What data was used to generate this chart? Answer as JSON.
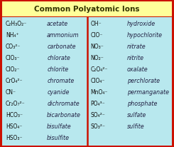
{
  "title": "Common Polyatomic Ions",
  "title_bg": "#FFFF99",
  "table_bg": "#B8E8EE",
  "border_color": "#CC1100",
  "divider_color": "#CC1100",
  "text_color": "#111111",
  "name_color": "#222244",
  "left_rows": [
    {
      "formula": "C₂H₃O₂⁻",
      "name": "acetate"
    },
    {
      "formula": "NH₄⁺",
      "name": "ammonium"
    },
    {
      "formula": "CO₃²⁻",
      "name": "carbonate"
    },
    {
      "formula": "ClO₃⁻",
      "name": "chlorate"
    },
    {
      "formula": "ClO₂⁻",
      "name": "chlorite"
    },
    {
      "formula": "CrO₄²⁻",
      "name": "chromate"
    },
    {
      "formula": "CN⁻",
      "name": "cyanide"
    },
    {
      "formula": "Cr₂O₇²⁻",
      "name": "dichromate"
    },
    {
      "formula": "HCO₃⁻",
      "name": "bicarbonate"
    },
    {
      "formula": "HSO₄⁻",
      "name": "bisulfate"
    },
    {
      "formula": "HSO₃⁻",
      "name": "bisulfite"
    }
  ],
  "right_rows": [
    {
      "formula": "OH⁻",
      "name": "hydroxide"
    },
    {
      "formula": "ClO⁻",
      "name": "hypochlorite"
    },
    {
      "formula": "NO₃⁻",
      "name": "nitrate"
    },
    {
      "formula": "NO₂⁻",
      "name": "nitrite"
    },
    {
      "formula": "C₂O₄²⁻",
      "name": "oxalate"
    },
    {
      "formula": "ClO₄⁻",
      "name": "perchlorate"
    },
    {
      "formula": "MnO₄⁻",
      "name": "permanganate"
    },
    {
      "formula": "PO₄³⁻",
      "name": "phosphate"
    },
    {
      "formula": "SO₄²⁻",
      "name": "sulfate"
    },
    {
      "formula": "SO₃²⁻",
      "name": "sulfite"
    }
  ],
  "fig_width": 2.45,
  "fig_height": 2.06,
  "dpi": 100,
  "title_fontsize": 7.5,
  "formula_fontsize": 5.5,
  "name_fontsize": 5.8
}
